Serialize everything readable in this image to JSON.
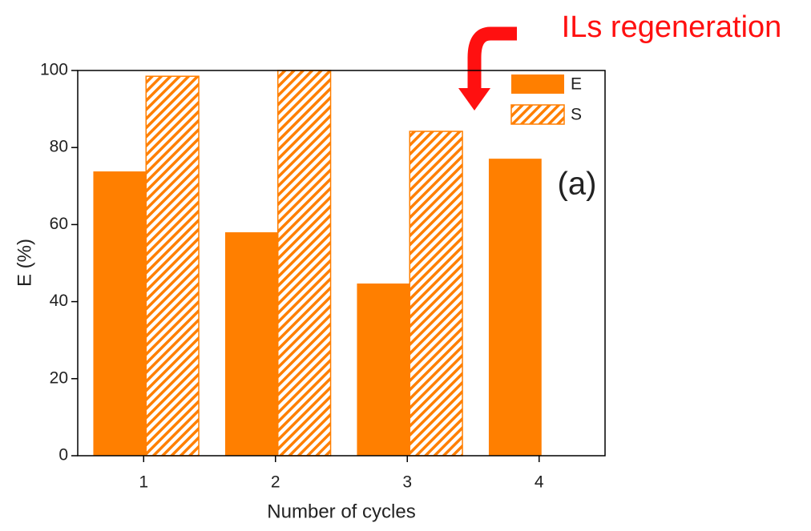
{
  "chart_data": {
    "type": "bar",
    "x_label": "Number of cycles",
    "y_label": "E (%)",
    "annotations": [
      "ILs regeneration",
      "(a)"
    ],
    "categories": [
      "1",
      "2",
      "3",
      "4"
    ],
    "series": [
      {
        "name": "E",
        "color": "#ff7f00",
        "hatch": false,
        "values": [
          73.8,
          58.0,
          44.7,
          77.1
        ]
      },
      {
        "name": "S",
        "color": "#ff7f00",
        "hatch": true,
        "values": [
          98.5,
          100,
          84.2,
          null
        ]
      }
    ],
    "ylim": [
      0,
      100
    ],
    "yticks": [
      0,
      20,
      40,
      60,
      80,
      100
    ],
    "legend": "upper right",
    "grid": false
  }
}
